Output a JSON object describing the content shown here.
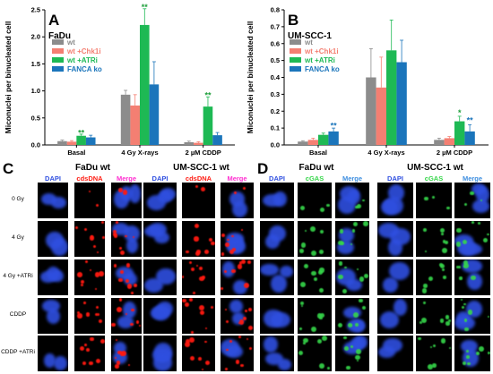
{
  "colors": {
    "wt": "#8c8c8c",
    "chk1": "#f47f72",
    "atr": "#1eb954",
    "fanca": "#1b75bb",
    "sig": "#1e9e3a",
    "sig_blue": "#1b75bb",
    "dapi": "#2f4fe0",
    "cdsdna": "#ff1a10",
    "cgas": "#36d64a"
  },
  "chart_data": [
    {
      "type": "bar",
      "panel": "A",
      "title": "FaDu",
      "ylabel": "Miconuclei per binucleated cell",
      "ylim": [
        0,
        2.5
      ],
      "yticks": [
        "0.0",
        "0.5",
        "1.0",
        "1.5",
        "2.0",
        "2.5"
      ],
      "yticks_v": [
        0,
        0.5,
        1.0,
        1.5,
        2.0,
        2.5
      ],
      "categories": [
        "Basal",
        "4 Gy X-rays",
        "2 µM CDDP"
      ],
      "legend_position": "top-left",
      "series": [
        {
          "name": "wt",
          "color_key": "wt",
          "values": [
            0.07,
            0.93,
            0.05
          ],
          "errors": [
            0.02,
            0.08,
            0.02
          ]
        },
        {
          "name": "wt +Chk1i",
          "color_key": "chk1",
          "values": [
            0.06,
            0.73,
            0.04
          ],
          "errors": [
            0.02,
            0.2,
            0.02
          ]
        },
        {
          "name": "wt +ATRi",
          "color_key": "atr",
          "values": [
            0.17,
            2.22,
            0.71
          ],
          "errors": [
            0.03,
            0.3,
            0.18
          ]
        },
        {
          "name": "FANCA ko",
          "color_key": "fanca",
          "values": [
            0.14,
            1.12,
            0.18
          ],
          "errors": [
            0.04,
            0.42,
            0.05
          ]
        }
      ],
      "annotations": [
        {
          "text": "**",
          "category": 0,
          "series": 2,
          "color_key": "sig",
          "y": 0.22
        },
        {
          "text": "**",
          "category": 1,
          "series": 2,
          "color_key": "sig",
          "y": 2.55
        },
        {
          "text": "**",
          "category": 2,
          "series": 2,
          "color_key": "sig",
          "y": 0.92
        }
      ]
    },
    {
      "type": "bar",
      "panel": "B",
      "title": "UM-SCC-1",
      "ylabel": "Miconuclei per binucleated cell",
      "ylim": [
        0,
        0.8
      ],
      "yticks": [
        "0.0",
        "0.1",
        "0.2",
        "0.3",
        "0.4",
        "0.5",
        "0.6",
        "0.7",
        "0.8"
      ],
      "yticks_v": [
        0,
        0.1,
        0.2,
        0.3,
        0.4,
        0.5,
        0.6,
        0.7,
        0.8
      ],
      "categories": [
        "Basal",
        "4 Gy X-rays",
        "2 µM CDDP"
      ],
      "legend_position": "top-left",
      "series": [
        {
          "name": "wt",
          "color_key": "wt",
          "values": [
            0.02,
            0.4,
            0.03
          ],
          "errors": [
            0.005,
            0.17,
            0.01
          ]
        },
        {
          "name": "wt +Chk1i",
          "color_key": "chk1",
          "values": [
            0.03,
            0.34,
            0.04
          ],
          "errors": [
            0.01,
            0.18,
            0.01
          ]
        },
        {
          "name": "wt +ATRi",
          "color_key": "atr",
          "values": [
            0.06,
            0.56,
            0.14
          ],
          "errors": [
            0.01,
            0.18,
            0.03
          ]
        },
        {
          "name": "FANCA ko",
          "color_key": "fanca",
          "values": [
            0.08,
            0.49,
            0.08
          ],
          "errors": [
            0.02,
            0.13,
            0.04
          ]
        }
      ],
      "annotations": [
        {
          "text": "**",
          "category": 0,
          "series": 3,
          "color_key": "sig_blue",
          "y": 0.115
        },
        {
          "text": "*",
          "category": 2,
          "series": 2,
          "color_key": "sig",
          "y": 0.19
        },
        {
          "text": "**",
          "category": 2,
          "series": 3,
          "color_key": "sig_blue",
          "y": 0.145
        }
      ]
    }
  ],
  "micrographs": {
    "C": {
      "letter": "C",
      "groups": [
        {
          "title": "FaDu wt",
          "channels": [
            "DAPI",
            "cdsDNA",
            "Merge"
          ]
        },
        {
          "title": "UM-SCC-1 wt",
          "channels": [
            "DAPI",
            "cdsDNA",
            "Merge"
          ]
        }
      ],
      "rows": [
        "0 Gy",
        "4 Gy",
        "4 Gy +ATRi",
        "CDDP",
        "CDDP +ATRi"
      ]
    },
    "D": {
      "letter": "D",
      "groups": [
        {
          "title": "FaDu wt",
          "channels": [
            "DAPI",
            "cGAS",
            "Merge"
          ]
        },
        {
          "title": "UM-SCC-1 wt",
          "channels": [
            "DAPI",
            "cGAS",
            "Merge"
          ]
        }
      ]
    }
  }
}
